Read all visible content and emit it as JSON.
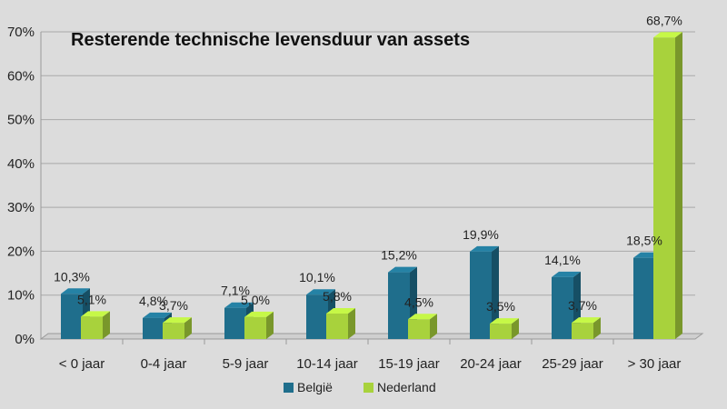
{
  "chart_data": {
    "type": "bar",
    "title": "Resterende technische levensduur van assets",
    "xlabel": "",
    "ylabel": "",
    "ylim": [
      0,
      70
    ],
    "yticks": [
      "0%",
      "10%",
      "20%",
      "30%",
      "40%",
      "50%",
      "60%",
      "70%"
    ],
    "categories": [
      "< 0 jaar",
      "0-4 jaar",
      "5-9 jaar",
      "10-14 jaar",
      "15-19 jaar",
      "20-24 jaar",
      "25-29 jaar",
      "> 30 jaar"
    ],
    "series": [
      {
        "name": "België",
        "color": "#1f6e8c",
        "values": [
          10.3,
          4.8,
          7.1,
          10.1,
          15.2,
          19.9,
          14.1,
          18.5
        ],
        "labels": [
          "10,3%",
          "4,8%",
          "7,1%",
          "10,1%",
          "15,2%",
          "19,9%",
          "14,1%",
          "18,5%"
        ]
      },
      {
        "name": "Nederland",
        "color": "#a8d23c",
        "values": [
          5.1,
          3.7,
          5.0,
          5.8,
          4.5,
          3.5,
          3.7,
          68.7
        ],
        "labels": [
          "5,1%",
          "3,7%",
          "5,0%",
          "5,8%",
          "4,5%",
          "3,5%",
          "3,7%",
          "68,7%"
        ]
      }
    ],
    "grid": true,
    "legend": "bottom-center"
  }
}
